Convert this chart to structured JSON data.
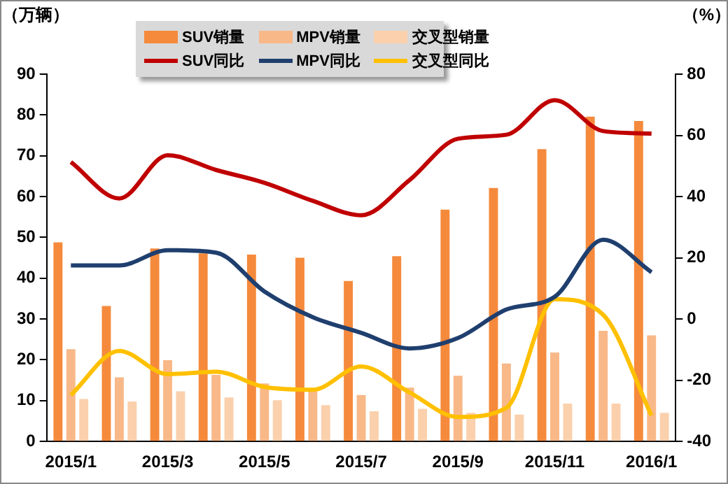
{
  "chart_data": {
    "type": "bar",
    "ylabel": "（万辆）",
    "y2label": "（%）",
    "categories": [
      "2015/1",
      null,
      "2015/3",
      null,
      "2015/5",
      null,
      "2015/7",
      null,
      "2015/9",
      null,
      "2015/11",
      null,
      "2016/1"
    ],
    "series": [
      {
        "name": "SUV销量",
        "color": "#f58a3c",
        "values": [
          48.8,
          33.2,
          47.3,
          46.1,
          45.8,
          45,
          39.3,
          45.4,
          56.8,
          62.1,
          71.6,
          79.6,
          78.5
        ]
      },
      {
        "name": "MPV销量",
        "color": "#f8b888",
        "values": [
          22.6,
          15.7,
          19.9,
          16.3,
          14.2,
          13,
          11.4,
          13.2,
          16.1,
          19.1,
          21.8,
          27.1,
          26
        ]
      },
      {
        "name": "交叉型销量",
        "color": "#fbd0ac",
        "values": [
          10.4,
          9.8,
          12.3,
          10.8,
          10.1,
          8.9,
          7.4,
          8,
          7,
          6.6,
          9.3,
          9.3,
          7
        ]
      },
      {
        "name": "SUV同比",
        "type": "line",
        "axis": "y2",
        "color": "#c00000",
        "values": [
          51.3,
          39.4,
          53.5,
          48.7,
          44.5,
          38.6,
          33.9,
          45.4,
          58.9,
          60.2,
          71.5,
          61.4,
          60.6
        ]
      },
      {
        "name": "MPV同比",
        "type": "line",
        "axis": "y2",
        "color": "#1f3f6e",
        "values": [
          17.5,
          17.5,
          22.5,
          21.7,
          9,
          0.6,
          -4.5,
          -9.6,
          -6.2,
          3.1,
          7.3,
          25.9,
          15.3
        ]
      },
      {
        "name": "交叉型同比",
        "type": "line",
        "axis": "y2",
        "color": "#ffc000",
        "values": [
          -24.8,
          -10.4,
          -18,
          -17.2,
          -22.2,
          -23.1,
          -15.5,
          -24,
          -32,
          -29,
          6.5,
          1.4,
          -31.5
        ]
      }
    ],
    "ylim": [
      0,
      90
    ],
    "yticks": [
      0,
      10,
      20,
      30,
      40,
      50,
      60,
      70,
      80,
      90
    ],
    "y2lim": [
      -40,
      80
    ],
    "y2ticks": [
      -40,
      -20,
      0,
      20,
      40,
      60,
      80
    ],
    "legend": "top",
    "grid": false,
    "marker": "none",
    "line_style": "solid"
  }
}
